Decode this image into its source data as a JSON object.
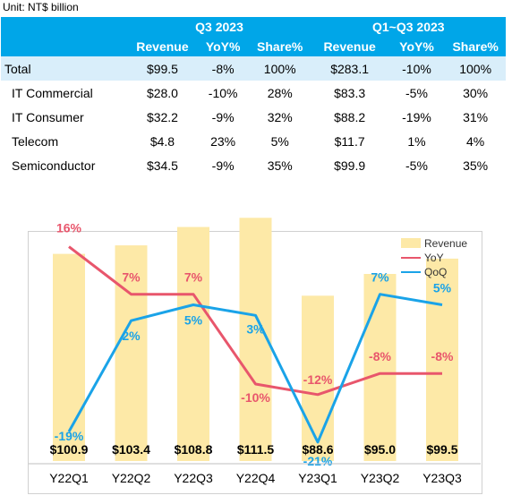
{
  "unit_label": "Unit: NT$ billion",
  "table": {
    "period_q3": "Q3 2023",
    "period_ytd": "Q1~Q3 2023",
    "col_revenue": "Revenue",
    "col_yoy": "YoY%",
    "col_share": "Share%",
    "rows": [
      {
        "label": "Total",
        "q3_rev": "$99.5",
        "q3_yoy": "-8%",
        "q3_share": "100%",
        "ytd_rev": "$283.1",
        "ytd_yoy": "-10%",
        "ytd_share": "100%"
      },
      {
        "label": "IT Commercial",
        "q3_rev": "$28.0",
        "q3_yoy": "-10%",
        "q3_share": "28%",
        "ytd_rev": "$83.3",
        "ytd_yoy": "-5%",
        "ytd_share": "30%"
      },
      {
        "label": "IT Consumer",
        "q3_rev": "$32.2",
        "q3_yoy": "-9%",
        "q3_share": "32%",
        "ytd_rev": "$88.2",
        "ytd_yoy": "-19%",
        "ytd_share": "31%"
      },
      {
        "label": "Telecom",
        "q3_rev": "$4.8",
        "q3_yoy": "23%",
        "q3_share": "5%",
        "ytd_rev": "$11.7",
        "ytd_yoy": "1%",
        "ytd_share": "4%"
      },
      {
        "label": "Semiconductor",
        "q3_rev": "$34.5",
        "q3_yoy": "-9%",
        "q3_share": "35%",
        "ytd_rev": "$99.9",
        "ytd_yoy": "-5%",
        "ytd_share": "35%"
      }
    ],
    "colors": {
      "header_bg": "#00a6e8",
      "total_bg": "#d9eefa"
    }
  },
  "chart_data": {
    "type": "bar",
    "categories": [
      "Y22Q1",
      "Y22Q2",
      "Y22Q3",
      "Y22Q4",
      "Y23Q1",
      "Y23Q2",
      "Y23Q3"
    ],
    "series": [
      {
        "name": "Revenue",
        "type": "bar",
        "values": [
          100.9,
          103.4,
          108.8,
          111.5,
          88.6,
          95.0,
          99.5
        ],
        "labels": [
          "$100.9",
          "$103.4",
          "$108.8",
          "$111.5",
          "$88.6",
          "$95.0",
          "$99.5"
        ],
        "color": "#fde9a7"
      },
      {
        "name": "YoY",
        "type": "line",
        "values": [
          16,
          7,
          7,
          -10,
          -12,
          -8,
          -8
        ],
        "labels": [
          "16%",
          "7%",
          "7%",
          "-10%",
          "-12%",
          "-8%",
          "-8%"
        ],
        "color": "#e8566c"
      },
      {
        "name": "QoQ",
        "type": "line",
        "values": [
          -19,
          2,
          5,
          3,
          -21,
          7,
          5
        ],
        "labels": [
          "-19%",
          "2%",
          "5%",
          "3%",
          "-21%",
          "7%",
          "5%"
        ],
        "color": "#1aa3e8"
      }
    ],
    "legend_position": "top-right",
    "grid": false
  }
}
